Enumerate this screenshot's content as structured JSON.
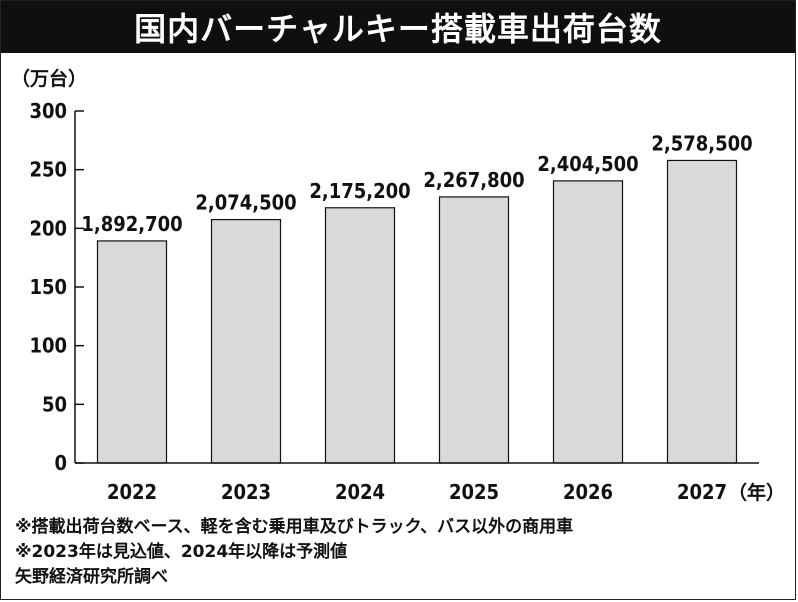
{
  "title": "国内バーチャルキー搭載車出荷台数",
  "chart_data": {
    "type": "bar",
    "title": "国内バーチャルキー搭載車出荷台数",
    "ylabel": "（万台）",
    "xunit": "（年）",
    "ylim": [
      0,
      300
    ],
    "yticks": [
      0,
      50,
      100,
      150,
      200,
      250,
      300
    ],
    "categories": [
      "2022",
      "2023",
      "2024",
      "2025",
      "2026",
      "2027"
    ],
    "values": [
      189.27,
      207.45,
      217.52,
      226.78,
      240.45,
      257.85
    ],
    "data_labels": [
      "1,892,700",
      "2,074,500",
      "2,175,200",
      "2,267,800",
      "2,404,500",
      "2,578,500"
    ],
    "bar_color": "#d9d9d9",
    "grid": false
  },
  "notes": [
    "※搭載出荷台数ベース、軽を含む乗用車及びトラック、バス以外の商用車",
    "※2023年は見込値、2024年以降は予測値",
    "矢野経済研究所調べ"
  ]
}
